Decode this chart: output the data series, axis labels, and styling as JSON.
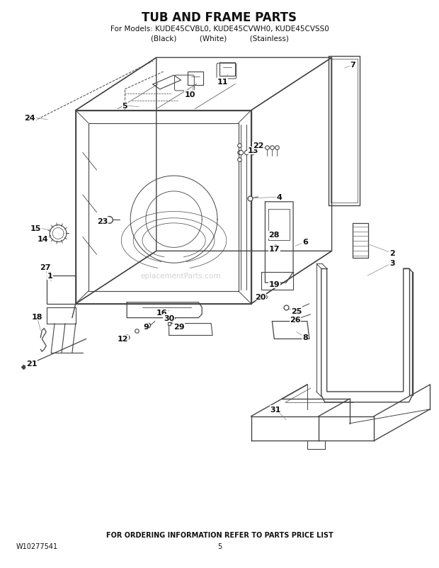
{
  "title": "TUB AND FRAME PARTS",
  "subtitle": "For Models: KUDE45CVBL0, KUDE45CVWH0, KUDE45CVSS0",
  "subtitle2": "(Black)          (White)          (Stainless)",
  "footer": "FOR ORDERING INFORMATION REFER TO PARTS PRICE LIST",
  "doc_num": "W10277541",
  "page_num": "5",
  "watermark": "eplacementParts.com",
  "bg_color": "#ffffff",
  "line_color": "#444444",
  "text_color": "#111111",
  "title_fontsize": 12,
  "label_fontsize": 7.5
}
